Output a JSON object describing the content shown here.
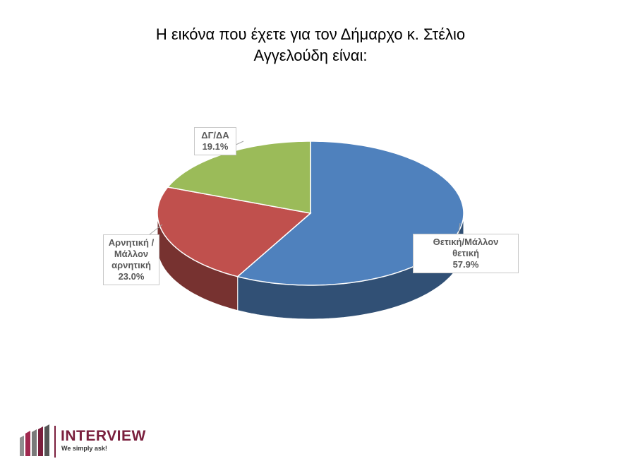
{
  "chart_data": {
    "type": "pie3d",
    "title": "Η εικόνα που έχετε για τον Δήμαρχο κ. Στέλιο Αγγελούδη είναι:",
    "categories": [
      "Θετική/Μάλλον θετική",
      "Αρνητική /Μάλλον αρνητική",
      "ΔΓ/ΔΑ"
    ],
    "values": [
      57.9,
      23.0,
      19.1
    ],
    "value_labels": [
      "57.9%",
      "23.0%",
      "19.1%"
    ],
    "colors": [
      "#4f81bd",
      "#c0504d",
      "#9bbb59"
    ]
  },
  "logo": {
    "name": "INTERVIEW",
    "tagline": "We simply ask!"
  }
}
